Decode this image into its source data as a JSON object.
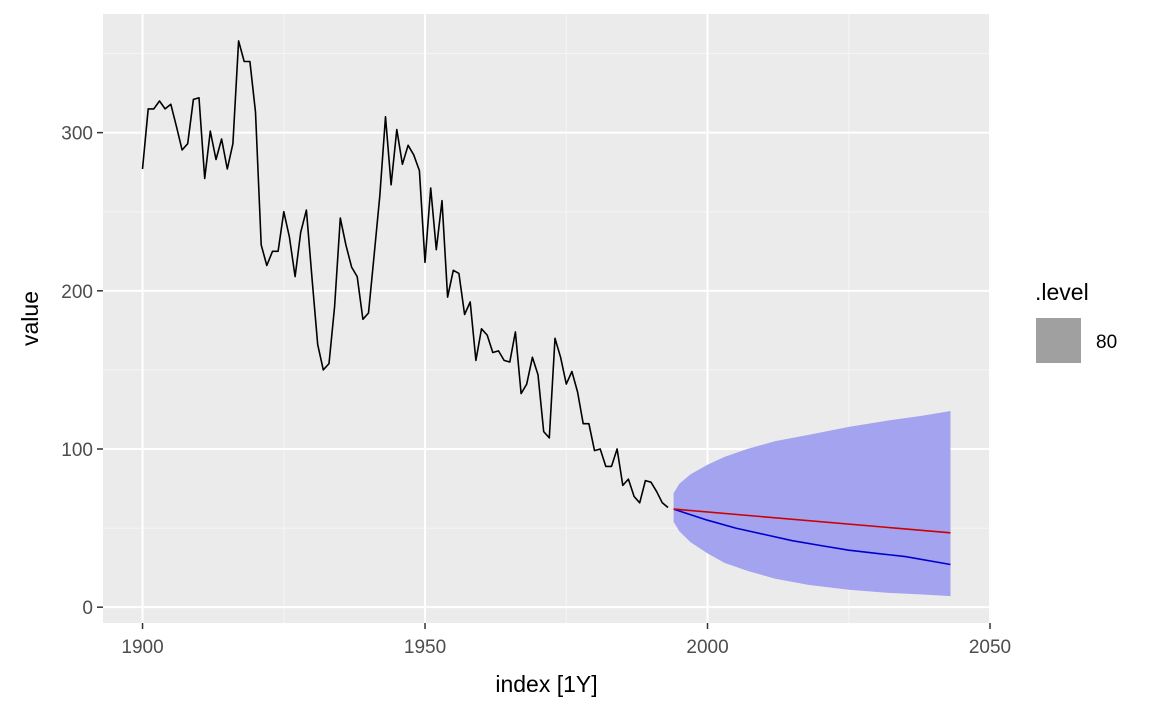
{
  "chart_data": {
    "type": "line",
    "xlabel": "index [1Y]",
    "ylabel": "value",
    "xlim": [
      1893,
      2050
    ],
    "ylim": [
      -10,
      375
    ],
    "x_ticks": [
      1900,
      1950,
      2000,
      2050
    ],
    "y_ticks": [
      0,
      100,
      200,
      300
    ],
    "grid": true,
    "legend": {
      "title": ".level",
      "position": "right",
      "entries": [
        {
          "label": "80",
          "color": "#a0a0a0"
        }
      ]
    },
    "series": [
      {
        "color": "#000000",
        "x": [
          1900,
          1901,
          1902,
          1903,
          1904,
          1905,
          1906,
          1907,
          1908,
          1909,
          1910,
          1911,
          1912,
          1913,
          1914,
          1915,
          1916,
          1917,
          1918,
          1919,
          1920,
          1921,
          1922,
          1923,
          1924,
          1925,
          1926,
          1927,
          1928,
          1929,
          1930,
          1931,
          1932,
          1933,
          1934,
          1935,
          1936,
          1937,
          1938,
          1939,
          1940,
          1941,
          1942,
          1943,
          1944,
          1945,
          1946,
          1947,
          1948,
          1949,
          1950,
          1951,
          1952,
          1953,
          1954,
          1955,
          1956,
          1957,
          1958,
          1959,
          1960,
          1961,
          1962,
          1963,
          1964,
          1965,
          1966,
          1967,
          1968,
          1969,
          1970,
          1971,
          1972,
          1973,
          1974,
          1975,
          1976,
          1977,
          1978,
          1979,
          1980,
          1981,
          1982,
          1983,
          1984,
          1985,
          1986,
          1987,
          1988,
          1989,
          1990,
          1991,
          1992,
          1993
        ],
        "values": [
          277,
          315,
          315,
          320,
          315,
          318,
          304,
          289,
          293,
          321,
          322,
          271,
          301,
          283,
          296,
          277,
          293,
          358,
          345,
          345,
          313,
          229,
          216,
          225,
          225,
          250,
          234,
          209,
          237,
          251,
          208,
          166,
          150,
          154,
          190,
          246,
          229,
          215,
          209,
          182,
          186,
          223,
          260,
          310,
          267,
          302,
          280,
          292,
          286,
          276,
          218,
          265,
          226,
          257,
          196,
          213,
          211,
          185,
          193,
          156,
          176,
          172,
          161,
          162,
          156,
          155,
          174,
          135,
          141,
          158,
          147,
          111,
          107,
          170,
          158,
          141,
          149,
          136,
          116,
          116,
          99,
          100,
          89,
          89,
          100,
          77,
          81,
          70,
          66,
          80,
          79,
          73,
          66,
          63
        ]
      },
      {
        "name": "",
        "color": "#0000cc",
        "x": [
          1994,
          2000,
          2005,
          2010,
          2015,
          2020,
          2025,
          2030,
          2035,
          2043
        ],
        "values": [
          62,
          55,
          50,
          46,
          42,
          39,
          36,
          34,
          32,
          27
        ]
      },
      {
        "name": "",
        "color": "#cc0000",
        "x": [
          1994,
          2043
        ],
        "values": [
          62,
          47
        ]
      }
    ],
    "interval": {
      "level": "80",
      "color": "#a3a3f0",
      "x": [
        1994,
        1995,
        1997,
        2000,
        2003,
        2007,
        2012,
        2018,
        2025,
        2032,
        2038,
        2043
      ],
      "upper": [
        72,
        78,
        84,
        90,
        95,
        100,
        105,
        109,
        114,
        118,
        121,
        124
      ],
      "lower": [
        54,
        48,
        41,
        34,
        28,
        23,
        18,
        14,
        11,
        9,
        8,
        7
      ]
    }
  }
}
